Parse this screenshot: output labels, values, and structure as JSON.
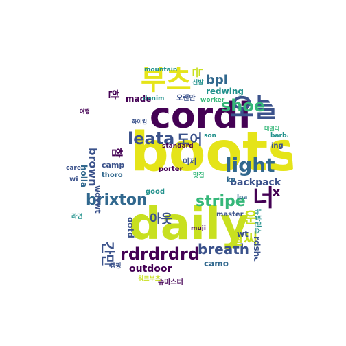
{
  "colors": {
    "background": "#ffffff",
    "dark_purple": "#440154",
    "indigo": "#3b528b",
    "blue": "#31688e",
    "teal": "#21918c",
    "green": "#35b779",
    "lime": "#90d743",
    "yellow": "#e5e419",
    "light_yellow": "#c8e020"
  },
  "words": [
    {
      "text": "boots",
      "color": "#e5e419"
    },
    {
      "text": "daily",
      "color": "#c8e020"
    },
    {
      "text": "cordi",
      "color": "#440154"
    },
    {
      "text": "부츠",
      "color": "#e5e419"
    },
    {
      "text": "오늘",
      "color": "#3b528b"
    },
    {
      "text": "너",
      "color": "#440154"
    },
    {
      "text": "light",
      "color": "#31688e"
    },
    {
      "text": "shoe",
      "color": "#35b779"
    },
    {
      "text": "leata",
      "color": "#3b528b"
    },
    {
      "text": "brixton",
      "color": "#31688e"
    },
    {
      "text": "stripe",
      "color": "#35b779"
    },
    {
      "text": "rdrdrdrd",
      "color": "#440154"
    },
    {
      "text": "breath",
      "color": "#3b528b"
    },
    {
      "text": "날씨",
      "color": "#c8e020"
    },
    {
      "text": "운",
      "color": "#c8e020"
    },
    {
      "text": "간만",
      "color": "#3b528b"
    },
    {
      "text": "아웃",
      "color": "#3b528b"
    },
    {
      "text": "도어",
      "color": "#3b528b"
    },
    {
      "text": "bpl",
      "color": "#31688e"
    },
    {
      "text": "brown",
      "color": "#3b528b"
    },
    {
      "text": "는",
      "color": "#c8e020"
    },
    {
      "text": "한",
      "color": "#440154"
    },
    {
      "text": "함",
      "color": "#440154"
    },
    {
      "text": "x",
      "color": "#440154"
    },
    {
      "text": "backpack",
      "color": "#3b528b"
    },
    {
      "text": "camo",
      "color": "#31688e"
    },
    {
      "text": "outdoor",
      "color": "#440154"
    },
    {
      "text": "ootd",
      "color": "#3b528b"
    },
    {
      "text": "made",
      "color": "#440154"
    },
    {
      "text": "redwing",
      "color": "#21918c"
    },
    {
      "text": "rdshoe",
      "color": "#3b528b"
    },
    {
      "text": "holla",
      "color": "#31688e"
    },
    {
      "text": "wdywt",
      "color": "#3b528b"
    },
    {
      "text": "camp",
      "color": "#3b528b"
    },
    {
      "text": "thoro",
      "color": "#31688e"
    },
    {
      "text": "porter",
      "color": "#440154"
    },
    {
      "text": "master",
      "color": "#3b528b"
    },
    {
      "text": "good",
      "color": "#21918c"
    },
    {
      "text": "wt",
      "color": "#3b528b"
    },
    {
      "text": "ke",
      "color": "#31688e"
    },
    {
      "text": "ing",
      "color": "#3b528b"
    },
    {
      "text": "wi",
      "color": "#3b528b"
    },
    {
      "text": "care",
      "color": "#3b528b"
    },
    {
      "text": "mountain",
      "color": "#21918c"
    },
    {
      "text": "denim",
      "color": "#21918c"
    },
    {
      "text": "worker",
      "color": "#35b779"
    },
    {
      "text": "son",
      "color": "#21918c"
    },
    {
      "text": "barbour",
      "color": "#21918c"
    },
    {
      "text": "loa",
      "color": "#31688e"
    },
    {
      "text": "standard",
      "color": "#440154"
    },
    {
      "text": "muji",
      "color": "#440154"
    },
    {
      "text": "오랜만",
      "color": "#3b528b"
    },
    {
      "text": "이제",
      "color": "#3b528b"
    },
    {
      "text": "캠핑",
      "color": "#3b528b"
    },
    {
      "text": "라면",
      "color": "#21918c"
    },
    {
      "text": "맛집",
      "color": "#35b779"
    },
    {
      "text": "슈마스터",
      "color": "#440154"
    },
    {
      "text": "워크부츠",
      "color": "#c8e020"
    },
    {
      "text": "뉴발란스",
      "color": "#21918c"
    },
    {
      "text": "하이킹",
      "color": "#3b528b"
    },
    {
      "text": "신발",
      "color": "#21918c"
    },
    {
      "text": "여행",
      "color": "#440154"
    },
    {
      "text": "산책",
      "color": "#90d743"
    },
    {
      "text": "데일리",
      "color": "#35b779"
    }
  ]
}
